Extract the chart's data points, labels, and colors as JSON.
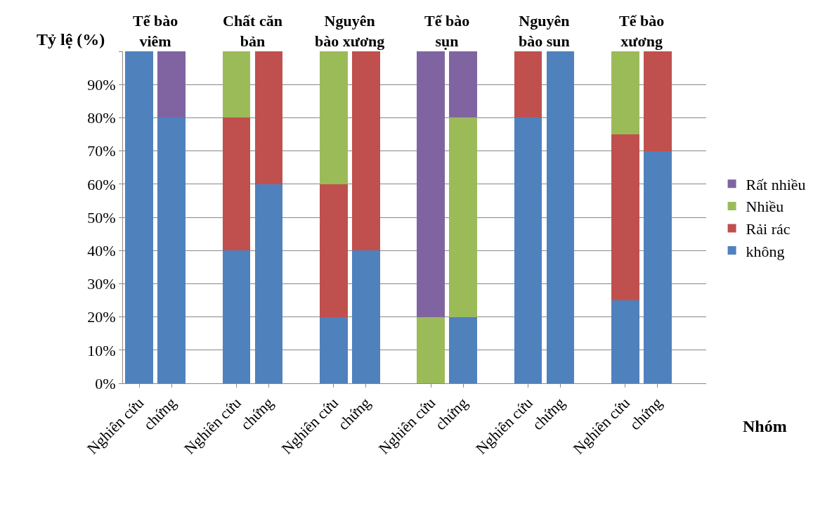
{
  "chart_data": {
    "type": "bar",
    "stacked": true,
    "ylabel": "Tỷ lệ (%)",
    "xlabel": "Nhóm",
    "categories": [
      "Nghiên cứu",
      "chứng",
      null,
      "Nghiên cứu",
      "chứng",
      null,
      "Nghiên cứu",
      "chứng",
      null,
      "Nghiên cứu",
      "chứng",
      null,
      "Nghiên cứu",
      "chứng",
      null,
      "Nghiên cứu",
      "chứng",
      null
    ],
    "series": [
      {
        "name": "không",
        "color": "#4f81bd",
        "values": [
          100,
          80,
          null,
          40,
          60,
          null,
          20,
          40,
          null,
          0,
          20,
          null,
          80,
          100,
          null,
          25,
          70,
          null
        ]
      },
      {
        "name": "Rải rác",
        "color": "#c0504d",
        "values": [
          0,
          0,
          null,
          40,
          40,
          null,
          40,
          60,
          null,
          0,
          0,
          null,
          20,
          0,
          null,
          50,
          30,
          null
        ]
      },
      {
        "name": "Nhiều",
        "color": "#9bbb59",
        "values": [
          0,
          0,
          null,
          20,
          0,
          null,
          40,
          0,
          null,
          20,
          60,
          null,
          0,
          0,
          null,
          25,
          0,
          null
        ]
      },
      {
        "name": "Rất nhiều",
        "color": "#8064a2",
        "values": [
          0,
          20,
          null,
          0,
          0,
          null,
          0,
          0,
          null,
          80,
          20,
          null,
          0,
          0,
          null,
          0,
          0,
          null
        ]
      }
    ],
    "ylim": [
      0,
      100
    ],
    "yticks": [
      {
        "value": 0,
        "label": "0%"
      },
      {
        "value": 10,
        "label": "10%"
      },
      {
        "value": 20,
        "label": "20%"
      },
      {
        "value": 30,
        "label": "30%"
      },
      {
        "value": 40,
        "label": "40%"
      },
      {
        "value": 50,
        "label": "50%"
      },
      {
        "value": 60,
        "label": "60%"
      },
      {
        "value": 70,
        "label": "70%"
      },
      {
        "value": 80,
        "label": "80%"
      },
      {
        "value": 90,
        "label": "90%"
      },
      {
        "value": 100,
        "label": null
      }
    ],
    "grid": "y",
    "legend": "right",
    "annotations": [
      "Tế bào\nviêm",
      "Chất căn\nbản",
      "Nguyên\nbào xương",
      "Tế bào\nsụn",
      "Nguyên\nbào sun",
      "Tế bào\nxương"
    ]
  }
}
